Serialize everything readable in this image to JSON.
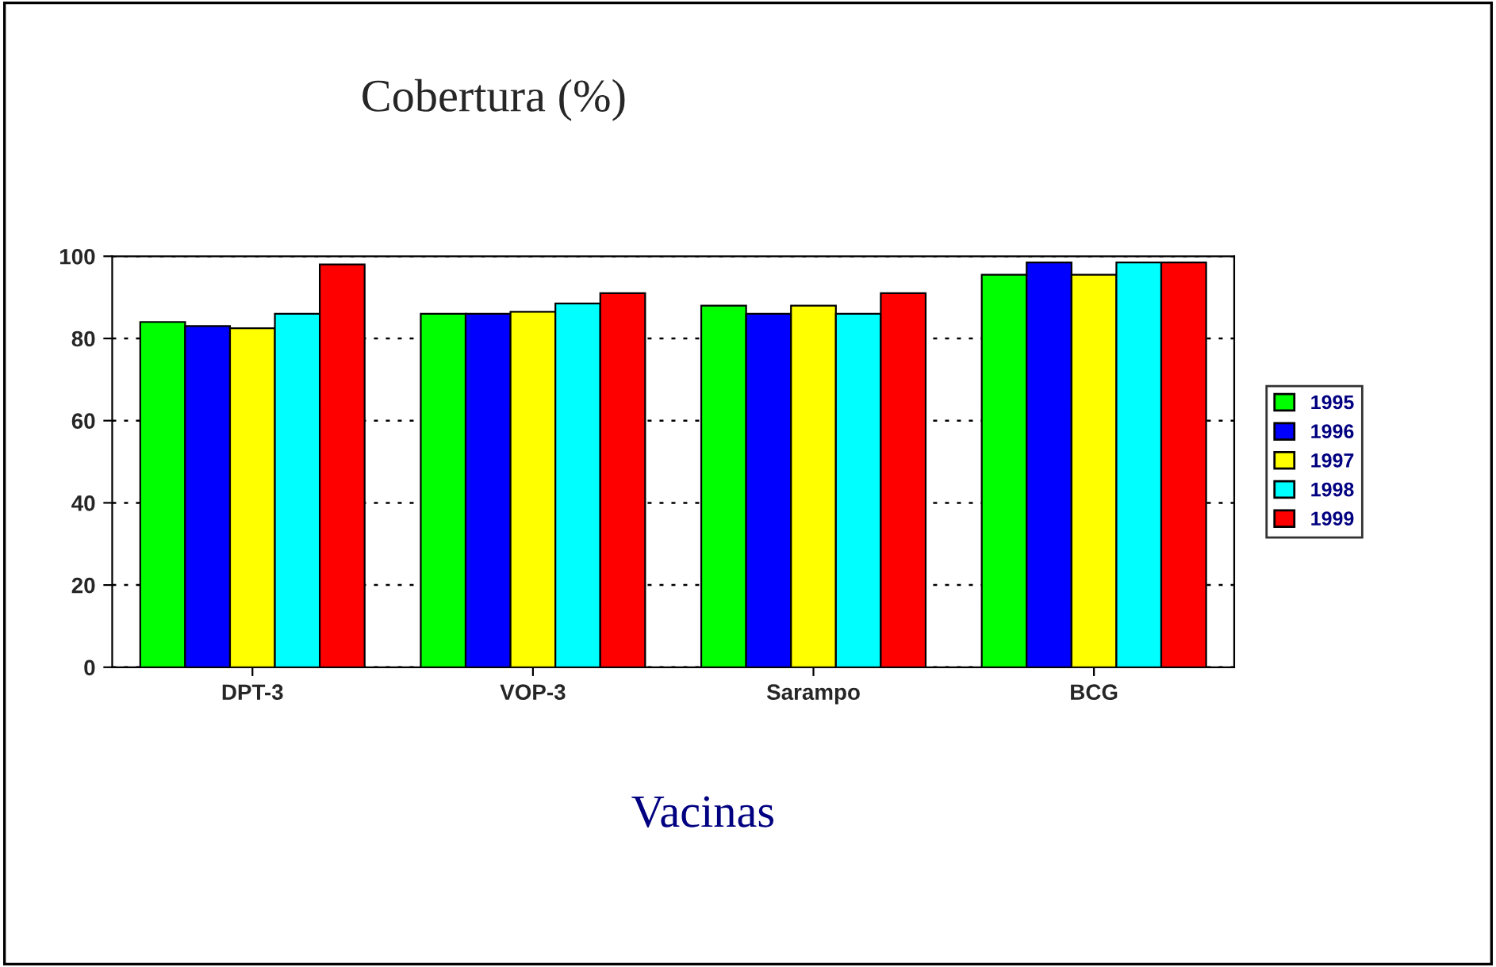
{
  "chart_data": {
    "type": "bar",
    "title": "Cobertura (%)",
    "xlabel": "Vacinas",
    "categories": [
      "DPT-3",
      "VOP-3",
      "Sarampo",
      "BCG"
    ],
    "series": [
      {
        "name": "1995",
        "color": "#00ff00",
        "values": [
          84,
          86,
          88,
          95.5
        ]
      },
      {
        "name": "1996",
        "color": "#0000ff",
        "values": [
          83,
          86,
          86,
          98.5
        ]
      },
      {
        "name": "1997",
        "color": "#ffff00",
        "values": [
          82.5,
          86.5,
          88,
          95.5
        ]
      },
      {
        "name": "1998",
        "color": "#00ffff",
        "values": [
          86,
          88.5,
          86,
          98.5
        ]
      },
      {
        "name": "1999",
        "color": "#ff0000",
        "values": [
          98,
          91,
          91,
          98.5
        ]
      }
    ],
    "ylim": [
      0,
      100
    ],
    "yticks": [
      0,
      20,
      40,
      60,
      80,
      100
    ],
    "grid": "y",
    "legend": "right"
  }
}
